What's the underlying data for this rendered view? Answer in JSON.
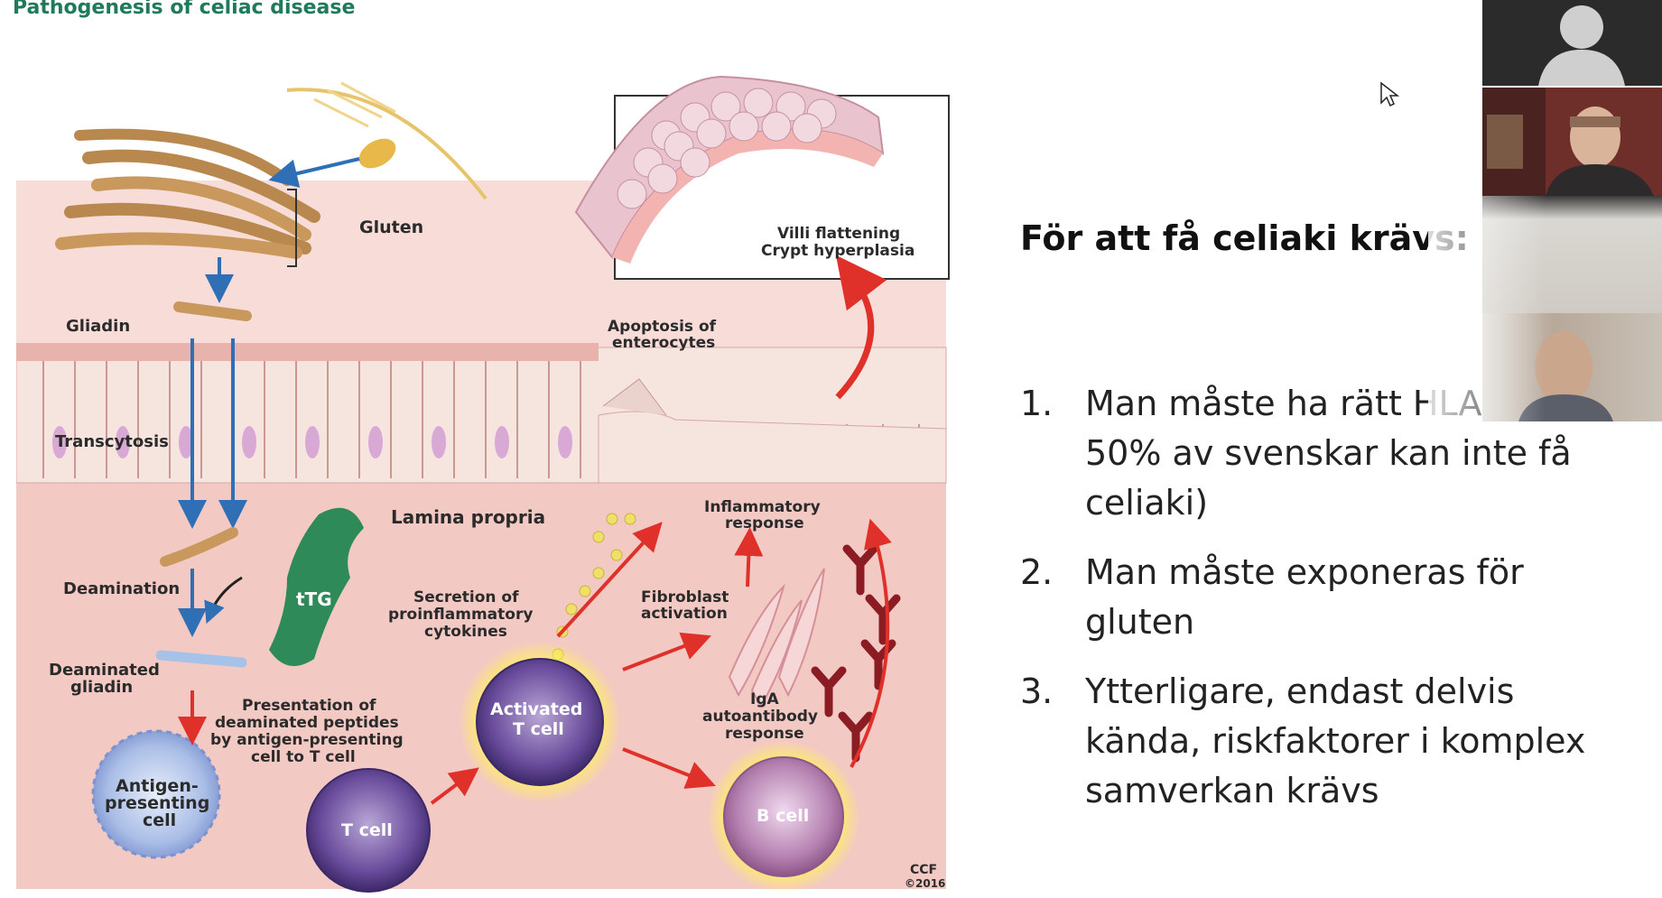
{
  "slide": {
    "figure_title": "Pathogenesis of celiac disease",
    "heading": "För att få celiaki krävs:",
    "requirements": [
      {
        "num": "1.",
        "text": "Man måste ha rätt HLA (ca 50% av svenskar kan inte få celiaki)"
      },
      {
        "num": "2.",
        "text": "Man måste exponeras för gluten"
      },
      {
        "num": "3.",
        "text": "Ytterligare, endast delvis kända, riskfaktorer i komplex samverkan krävs"
      }
    ]
  },
  "figure_labels": {
    "gluten": "Gluten",
    "gliadin": "Gliadin",
    "transcytosis": "Transcytosis",
    "lamina_propria": "Lamina propria",
    "deamination": "Deamination",
    "ttg": "tTG",
    "deaminated_gliadin_1": "Deaminated",
    "deaminated_gliadin_2": "gliadin",
    "presentation_1": "Presentation of",
    "presentation_2": "deaminated peptides",
    "presentation_3": "by antigen-presenting",
    "presentation_4": "cell to T cell",
    "apc_1": "Antigen-",
    "apc_2": "presenting",
    "apc_3": "cell",
    "t_cell": "T cell",
    "activated_1": "Activated",
    "activated_2": "T cell",
    "b_cell": "B cell",
    "secretion_1": "Secretion of",
    "secretion_2": "proinflammatory",
    "secretion_3": "cytokines",
    "fibroblast_1": "Fibroblast",
    "fibroblast_2": "activation",
    "inflammatory_1": "Inflammatory",
    "inflammatory_2": "response",
    "iga_1": "IgA",
    "iga_2": "autoantibody",
    "iga_3": "response",
    "apoptosis_1": "Apoptosis of",
    "apoptosis_2": "enterocytes",
    "villi_1": "Villi flattening",
    "villi_2": "Crypt hyperplasia",
    "ccf_1": "CCF",
    "ccf_2": "©2016"
  },
  "video_tiles": [
    {
      "name": "participant-placeholder",
      "color": "#2b2b2b"
    },
    {
      "name": "presenter",
      "color": "#6e2e2a"
    },
    {
      "name": "participant-3",
      "color": "#cfcac3"
    },
    {
      "name": "participant-4",
      "color": "#c9c1b6"
    }
  ],
  "colors": {
    "title_green": "#1f7a5c",
    "arrow_blue": "#2e6fb5",
    "arrow_red": "#e0302a",
    "tissue_pink": "#f3c9c4"
  }
}
